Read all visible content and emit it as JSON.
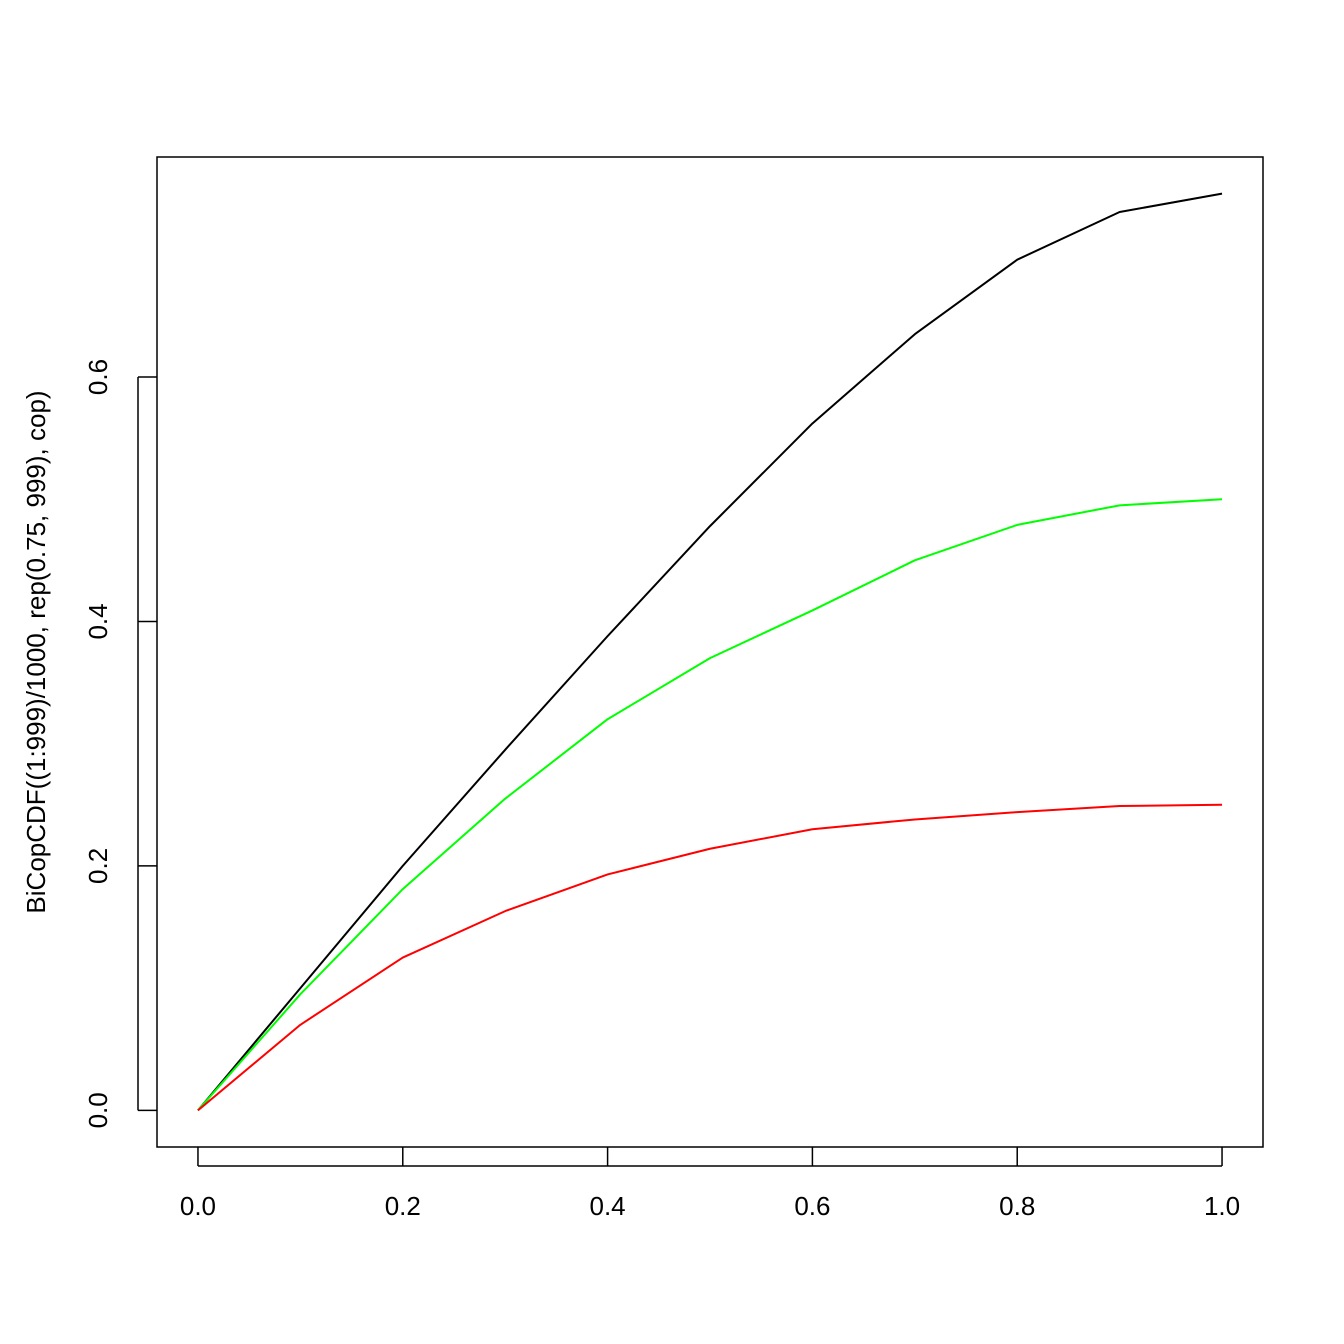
{
  "chart_data": {
    "type": "line",
    "y_label": "BiCopCDF((1:999)/1000, rep(0.75, 999), cop)",
    "x": [
      0,
      0.1,
      0.2,
      0.3,
      0.4,
      0.5,
      0.6,
      0.7,
      0.8,
      0.9,
      1.0
    ],
    "series": [
      {
        "color": "#000000",
        "values": [
          0,
          0.1,
          0.2,
          0.295,
          0.388,
          0.478,
          0.562,
          0.635,
          0.696,
          0.735,
          0.75
        ]
      },
      {
        "color": "#00ff00",
        "values": [
          0,
          0.095,
          0.181,
          0.255,
          0.32,
          0.37,
          0.409,
          0.45,
          0.479,
          0.495,
          0.5
        ]
      },
      {
        "color": "#ff0000",
        "values": [
          0,
          0.07,
          0.125,
          0.163,
          0.193,
          0.214,
          0.23,
          0.238,
          0.244,
          0.249,
          0.25
        ]
      }
    ],
    "xlim": [
      -0.04,
      1.04
    ],
    "ylim": [
      -0.03,
      0.78
    ],
    "xticks": [
      {
        "value": 0,
        "label": "0.0"
      },
      {
        "value": 0.2,
        "label": "0.2"
      },
      {
        "value": 0.4,
        "label": "0.4"
      },
      {
        "value": 0.6,
        "label": "0.6"
      },
      {
        "value": 0.8,
        "label": "0.8"
      },
      {
        "value": 1.0,
        "label": "1.0"
      }
    ],
    "yticks": [
      {
        "value": 0,
        "label": "0.0"
      },
      {
        "value": 0.2,
        "label": "0.2"
      },
      {
        "value": 0.4,
        "label": "0.4"
      },
      {
        "value": 0.6,
        "label": "0.6"
      }
    ],
    "grid": false
  }
}
